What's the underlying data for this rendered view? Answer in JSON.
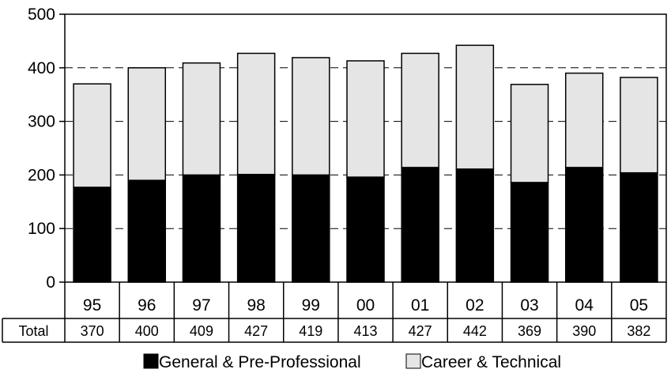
{
  "chart_data": {
    "type": "bar",
    "stacked": true,
    "categories": [
      "95",
      "96",
      "97",
      "98",
      "99",
      "00",
      "01",
      "02",
      "03",
      "04",
      "05"
    ],
    "series": [
      {
        "name": "General & Pre-Professional",
        "color": "#000000",
        "values": [
          177,
          190,
          200,
          201,
          200,
          196,
          214,
          211,
          186,
          214,
          204
        ]
      },
      {
        "name": "Career & Technical",
        "color": "#e5e5e5",
        "values": [
          193,
          210,
          209,
          226,
          219,
          217,
          213,
          231,
          183,
          176,
          178
        ]
      }
    ],
    "table_row": {
      "label": "Total",
      "values": [
        "370",
        "400",
        "409",
        "427",
        "419",
        "413",
        "427",
        "442",
        "369",
        "390",
        "382"
      ]
    },
    "ylim": [
      0,
      500
    ],
    "yticks": [
      0,
      100,
      200,
      300,
      400,
      500
    ],
    "gridlines": "dashed horizontal at 100, 200, 300, 400",
    "legend_position": "bottom"
  }
}
